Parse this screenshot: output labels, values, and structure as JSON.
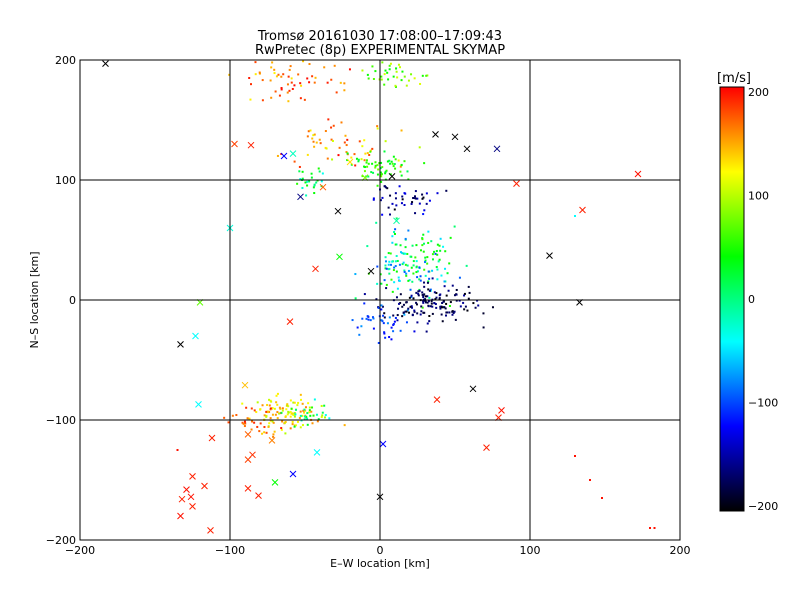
{
  "chart_data": {
    "type": "scatter",
    "title": "Tromsø 20161030 17:08:00–17:09:43",
    "subtitle": "RwPretec (8p) EXPERIMENTAL SKYMAP",
    "xlabel": "E–W location [km]",
    "ylabel": "N–S location [km]",
    "xlim": [
      -200,
      200
    ],
    "ylim": [
      -200,
      200
    ],
    "xticks": [
      "−200",
      "−100",
      "0",
      "100",
      "200"
    ],
    "yticks": [
      "−200",
      "−100",
      "0",
      "100",
      "200"
    ],
    "grid": true,
    "colorbar": {
      "label": "[m/s]",
      "range": [
        -200,
        200
      ],
      "ticks": [
        "200",
        "100",
        "0",
        "−100",
        "−200"
      ],
      "colors": [
        "#ff0000",
        "#ffff00",
        "#00ff00",
        "#00ffff",
        "#0000ff",
        "#000000"
      ]
    },
    "clusters": [
      {
        "cx": -55,
        "cy": 185,
        "sx": 35,
        "sy": 15,
        "n": 60,
        "vmin": 120,
        "vmax": 200
      },
      {
        "cx": 10,
        "cy": 188,
        "sx": 20,
        "sy": 10,
        "n": 40,
        "vmin": 30,
        "vmax": 110
      },
      {
        "cx": -30,
        "cy": 130,
        "sx": 35,
        "sy": 15,
        "n": 55,
        "vmin": 90,
        "vmax": 200
      },
      {
        "cx": 0,
        "cy": 110,
        "sx": 18,
        "sy": 10,
        "n": 60,
        "vmin": 10,
        "vmax": 80
      },
      {
        "cx": -45,
        "cy": 100,
        "sx": 15,
        "sy": 8,
        "n": 25,
        "vmin": -40,
        "vmax": 60
      },
      {
        "cx": 15,
        "cy": 85,
        "sx": 18,
        "sy": 12,
        "n": 45,
        "vmin": -200,
        "vmax": -110
      },
      {
        "cx": 20,
        "cy": 30,
        "sx": 25,
        "sy": 25,
        "n": 150,
        "vmin": -100,
        "vmax": 60
      },
      {
        "cx": 35,
        "cy": -3,
        "sx": 25,
        "sy": 14,
        "n": 150,
        "vmin": -200,
        "vmax": -150
      },
      {
        "cx": 0,
        "cy": -20,
        "sx": 15,
        "sy": 10,
        "n": 40,
        "vmin": -130,
        "vmax": -60
      },
      {
        "cx": -60,
        "cy": -95,
        "sx": 20,
        "sy": 12,
        "n": 110,
        "vmin": 90,
        "vmax": 160
      },
      {
        "cx": -85,
        "cy": -100,
        "sx": 15,
        "sy": 10,
        "n": 30,
        "vmin": 150,
        "vmax": 200
      },
      {
        "cx": -45,
        "cy": -95,
        "sx": 12,
        "sy": 8,
        "n": 25,
        "vmin": -40,
        "vmax": 60
      }
    ],
    "crosses": [
      {
        "x": -183,
        "y": 197,
        "v": -200
      },
      {
        "x": -97,
        "y": 130,
        "v": 180
      },
      {
        "x": -86,
        "y": 129,
        "v": 190
      },
      {
        "x": -58,
        "y": 122,
        "v": -20
      },
      {
        "x": -64,
        "y": 120,
        "v": -120
      },
      {
        "x": -20,
        "y": 115,
        "v": 130
      },
      {
        "x": -10,
        "y": 102,
        "v": 80
      },
      {
        "x": 8,
        "y": 103,
        "v": -200
      },
      {
        "x": 37,
        "y": 138,
        "v": -200
      },
      {
        "x": 50,
        "y": 136,
        "v": -200
      },
      {
        "x": 58,
        "y": 126,
        "v": -200
      },
      {
        "x": 78,
        "y": 126,
        "v": -160
      },
      {
        "x": 91,
        "y": 97,
        "v": 190
      },
      {
        "x": 172,
        "y": 105,
        "v": 195
      },
      {
        "x": -28,
        "y": 74,
        "v": -200
      },
      {
        "x": -38,
        "y": 94,
        "v": 170
      },
      {
        "x": -53,
        "y": 86,
        "v": -160
      },
      {
        "x": -100,
        "y": 60,
        "v": -30
      },
      {
        "x": 135,
        "y": 75,
        "v": 190
      },
      {
        "x": 113,
        "y": 37,
        "v": -200
      },
      {
        "x": -43,
        "y": 26,
        "v": 190
      },
      {
        "x": -27,
        "y": 36,
        "v": 40
      },
      {
        "x": -6,
        "y": 24,
        "v": -200
      },
      {
        "x": 11,
        "y": 66,
        "v": -10
      },
      {
        "x": -120,
        "y": -2,
        "v": 70
      },
      {
        "x": -123,
        "y": -30,
        "v": -40
      },
      {
        "x": -133,
        "y": -37,
        "v": -200
      },
      {
        "x": -60,
        "y": -18,
        "v": 190
      },
      {
        "x": -121,
        "y": -87,
        "v": -40
      },
      {
        "x": -90,
        "y": -71,
        "v": 140
      },
      {
        "x": 62,
        "y": -74,
        "v": -200
      },
      {
        "x": 38,
        "y": -83,
        "v": 190
      },
      {
        "x": 81,
        "y": -92,
        "v": 195
      },
      {
        "x": 79,
        "y": -98,
        "v": 190
      },
      {
        "x": 71,
        "y": -123,
        "v": 190
      },
      {
        "x": 2,
        "y": -120,
        "v": -120
      },
      {
        "x": -42,
        "y": -127,
        "v": -40
      },
      {
        "x": -58,
        "y": -145,
        "v": -120
      },
      {
        "x": -70,
        "y": -152,
        "v": 40
      },
      {
        "x": -88,
        "y": -133,
        "v": 180
      },
      {
        "x": -112,
        "y": -115,
        "v": 190
      },
      {
        "x": -117,
        "y": -155,
        "v": 190
      },
      {
        "x": -125,
        "y": -147,
        "v": 190
      },
      {
        "x": -126,
        "y": -164,
        "v": 195
      },
      {
        "x": -125,
        "y": -172,
        "v": 190
      },
      {
        "x": -129,
        "y": -158,
        "v": 195
      },
      {
        "x": -132,
        "y": -166,
        "v": 190
      },
      {
        "x": -133,
        "y": -180,
        "v": 195
      },
      {
        "x": -113,
        "y": -192,
        "v": 190
      },
      {
        "x": -88,
        "y": -157,
        "v": 190
      },
      {
        "x": -81,
        "y": -163,
        "v": 190
      },
      {
        "x": -85,
        "y": -129,
        "v": 185
      },
      {
        "x": -72,
        "y": -117,
        "v": 160
      },
      {
        "x": -88,
        "y": -112,
        "v": 170
      },
      {
        "x": 0,
        "y": -164,
        "v": -200
      },
      {
        "x": 133,
        "y": -2,
        "v": -200
      }
    ],
    "dots": [
      {
        "x": 130,
        "y": -130,
        "v": 195
      },
      {
        "x": 140,
        "y": -150,
        "v": 195
      },
      {
        "x": 148,
        "y": -165,
        "v": 195
      },
      {
        "x": 180,
        "y": -190,
        "v": 195
      },
      {
        "x": 183,
        "y": -190,
        "v": 195
      },
      {
        "x": 130,
        "y": 70,
        "v": -40
      },
      {
        "x": -135,
        "y": -125,
        "v": 195
      }
    ]
  }
}
